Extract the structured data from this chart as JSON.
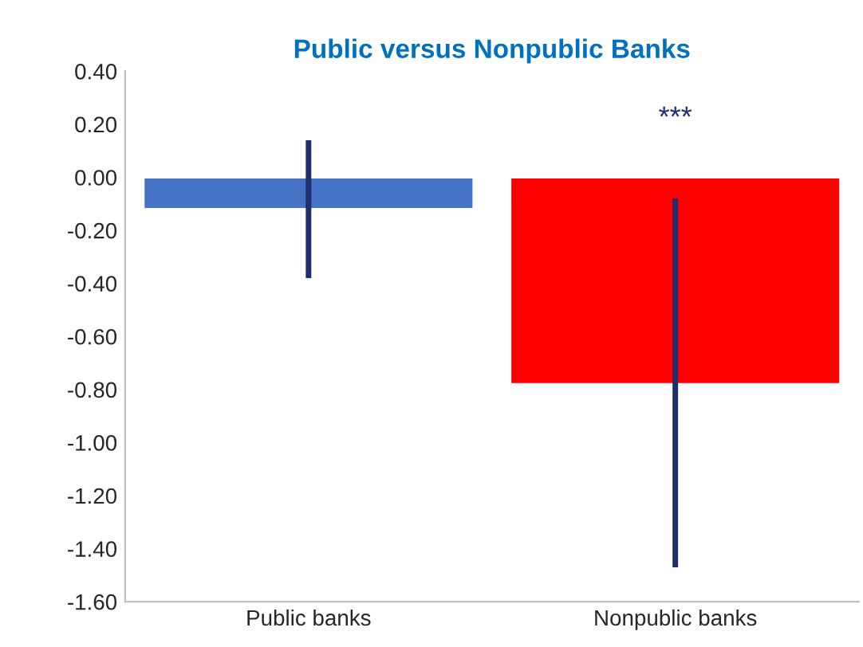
{
  "chart_data": {
    "type": "bar",
    "title": "Public versus Nonpublic Banks",
    "categories": [
      "Public banks",
      "Nonpublic banks"
    ],
    "values": [
      -0.12,
      -0.78
    ],
    "colors": [
      "#4472c4",
      "#ff0000"
    ],
    "errors": [
      [
        -0.38,
        0.14
      ],
      [
        -1.47,
        -0.08
      ]
    ],
    "annotations": [
      "***"
    ],
    "ylim": [
      -1.6,
      0.4
    ],
    "yticks": [
      {
        "value": 0.4,
        "label": "0.40"
      },
      {
        "value": 0.2,
        "label": "0.20"
      },
      {
        "value": 0.0,
        "label": "0.00"
      },
      {
        "value": -0.2,
        "label": "-0.20"
      },
      {
        "value": -0.4,
        "label": "-0.40"
      },
      {
        "value": -0.6,
        "label": "-0.60"
      },
      {
        "value": -0.8,
        "label": "-0.80"
      },
      {
        "value": -1.0,
        "label": "-1.00"
      },
      {
        "value": -1.2,
        "label": "-1.20"
      },
      {
        "value": -1.4,
        "label": "-1.40"
      },
      {
        "value": -1.6,
        "label": "-1.60"
      }
    ],
    "grid": false
  }
}
